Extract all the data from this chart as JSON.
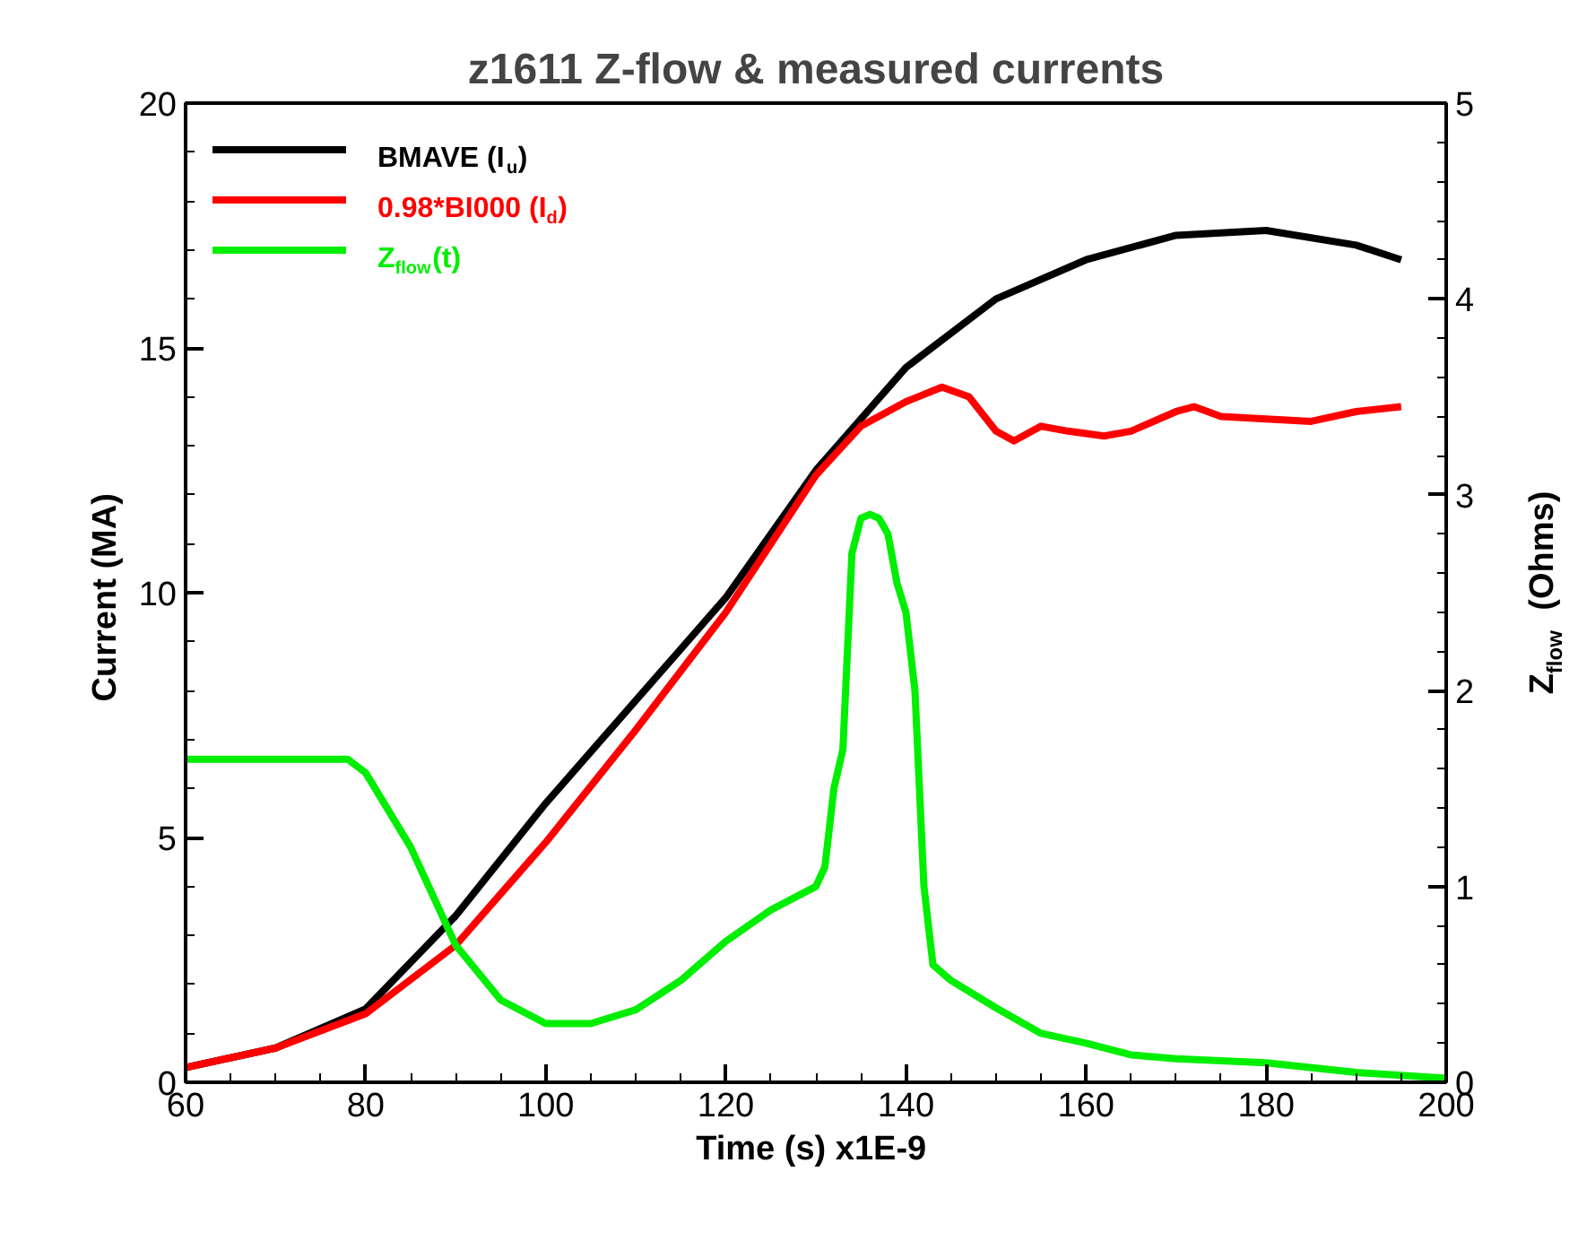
{
  "chart_data": {
    "type": "line",
    "title": "z1611 Z-flow & measured currents",
    "xlabel": "Time  (s) x1E-9",
    "ylabel": "Current  (MA)",
    "y2label": "Z$_{flow}$  (Ohms)",
    "xlim": [
      60,
      200
    ],
    "xticks": [
      60,
      80,
      100,
      120,
      140,
      160,
      180,
      200
    ],
    "ylim": [
      0,
      20
    ],
    "yticks": [
      0,
      5,
      10,
      15,
      20
    ],
    "y2lim": [
      0,
      5
    ],
    "y2ticks": [
      0,
      1,
      2,
      3,
      4,
      5
    ],
    "grid": false,
    "legend": "top left",
    "line_style": "solid",
    "series": [
      {
        "name": "BMAVE (I$_{u}$)",
        "color": "#000000",
        "x": [
          60,
          70,
          80,
          90,
          100,
          110,
          120,
          130,
          140,
          150,
          160,
          170,
          180,
          190,
          195
        ],
        "values": [
          0.3,
          0.7,
          1.5,
          3.4,
          5.7,
          7.8,
          9.9,
          12.5,
          14.6,
          16.0,
          16.8,
          17.3,
          17.4,
          17.1,
          16.8
        ]
      },
      {
        "name": "0.98*BI000 (I$_{d}$)",
        "color": "#ff0000",
        "x": [
          60,
          70,
          80,
          90,
          100,
          110,
          120,
          130,
          135,
          140,
          144,
          147,
          150,
          152,
          155,
          158,
          162,
          165,
          170,
          172,
          175,
          185,
          190,
          195
        ],
        "values": [
          0.3,
          0.7,
          1.4,
          2.8,
          4.9,
          7.2,
          9.6,
          12.4,
          13.4,
          13.9,
          14.2,
          14.0,
          13.3,
          13.1,
          13.4,
          13.3,
          13.2,
          13.3,
          13.7,
          13.8,
          13.6,
          13.5,
          13.7,
          13.8
        ]
      },
      {
        "name": "Z$_{flow}$(t)",
        "color": "#00ee00",
        "axis": "y2",
        "x": [
          60,
          78,
          80,
          85,
          90,
          95,
          100,
          105,
          110,
          115,
          120,
          125,
          130,
          131,
          132,
          133,
          134,
          135,
          136,
          137,
          138,
          139,
          140,
          141,
          142,
          143,
          145,
          150,
          155,
          160,
          165,
          170,
          180,
          190,
          200
        ],
        "values": [
          1.65,
          1.65,
          1.58,
          1.2,
          0.7,
          0.42,
          0.3,
          0.3,
          0.37,
          0.52,
          0.72,
          0.88,
          1.0,
          1.1,
          1.5,
          1.7,
          2.7,
          2.88,
          2.9,
          2.88,
          2.8,
          2.55,
          2.4,
          2.0,
          1.0,
          0.6,
          0.52,
          0.38,
          0.25,
          0.2,
          0.14,
          0.12,
          0.1,
          0.05,
          0.02
        ]
      }
    ]
  }
}
